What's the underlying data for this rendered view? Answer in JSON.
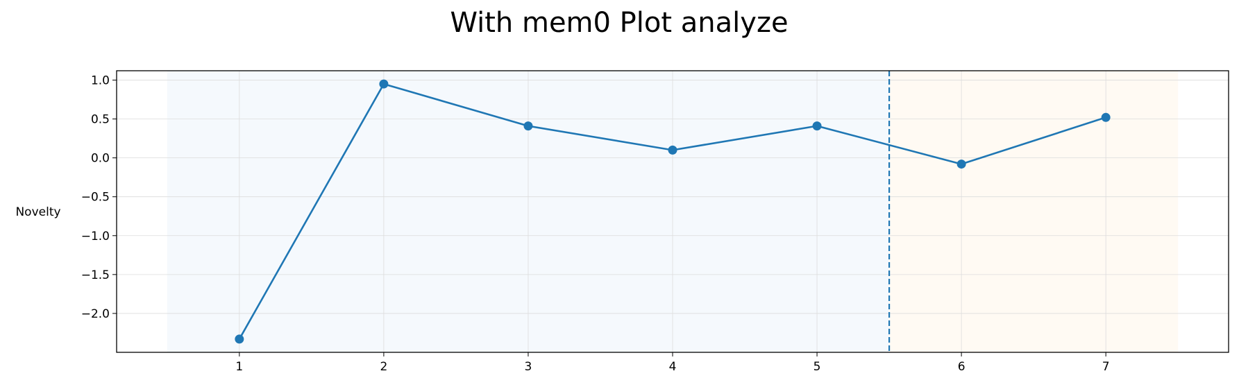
{
  "chart_data": {
    "type": "line",
    "title": "With mem0 Plot analyze",
    "xlabel": "",
    "ylabel": "Novelty",
    "x": [
      1,
      2,
      3,
      4,
      5,
      6,
      7
    ],
    "xticks": [
      "1",
      "2",
      "3",
      "4",
      "5",
      "6",
      "7"
    ],
    "xlim": [
      0.15,
      7.85
    ],
    "ylim": [
      -2.5,
      1.12
    ],
    "yticks": [
      1.0,
      0.5,
      0.0,
      -0.5,
      -1.0,
      -1.5,
      -2.0
    ],
    "ytick_labels": [
      "1.0",
      "0.5",
      "0.0",
      "−0.5",
      "−1.0",
      "−1.5",
      "−2.0"
    ],
    "series": [
      {
        "values": [
          -2.33,
          0.95,
          0.41,
          0.1,
          0.41,
          -0.08,
          0.52
        ],
        "color": "#1f77b4",
        "marker": "circle"
      }
    ],
    "shaded_regions": [
      {
        "x_start": 0.5,
        "x_end": 5.5,
        "color": "#f5f9fd"
      },
      {
        "x_start": 5.5,
        "x_end": 7.5,
        "color": "#fffaf3"
      }
    ],
    "vertical_lines": [
      {
        "x": 5.5,
        "style": "dashed",
        "color": "#1f77b4"
      }
    ],
    "grid": true,
    "legend": "none"
  }
}
